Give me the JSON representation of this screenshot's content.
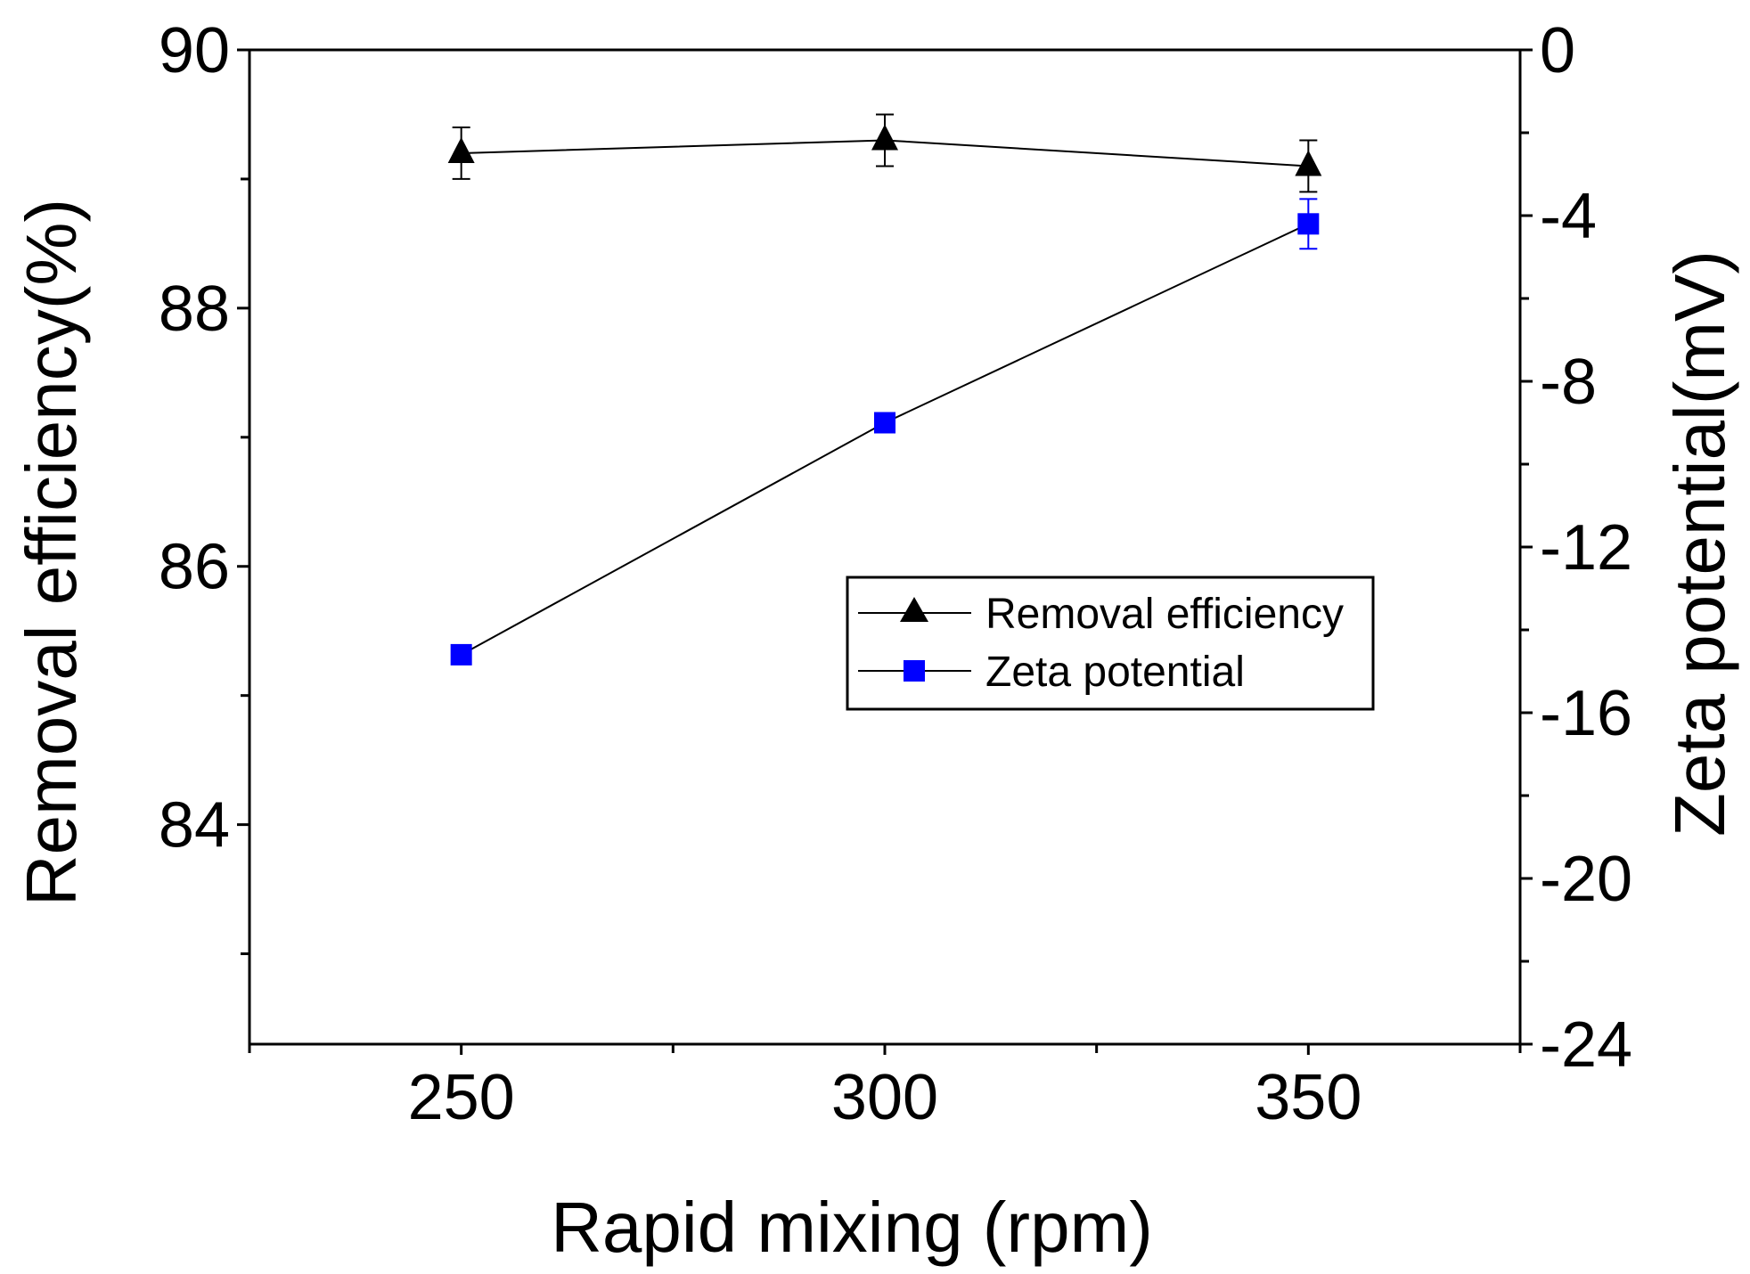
{
  "chart_data": {
    "type": "line",
    "title": "",
    "xlabel": "Rapid mixing (rpm)",
    "ylabel": "Removal efficiency(%)",
    "ylabel_right": "Zeta potential(mV)",
    "x": [
      250,
      300,
      350
    ],
    "xlim": [
      225,
      375
    ],
    "x_ticks": [
      "250",
      "300",
      "350"
    ],
    "ylim": [
      82.3,
      90
    ],
    "y_ticks": [
      "84",
      "86",
      "88",
      "90"
    ],
    "ylim_right": [
      -24,
      0
    ],
    "y_ticks_right": [
      "-24",
      "-20",
      "-16",
      "-12",
      "-8",
      "-4",
      "0"
    ],
    "legend_position": "center-right",
    "series": [
      {
        "name": "Removal efficiency",
        "axis": "left",
        "marker": "triangle",
        "color": "#000000",
        "values": [
          89.2,
          89.3,
          89.1
        ],
        "errors": [
          0.2,
          0.2,
          0.2
        ]
      },
      {
        "name": "Zeta potential",
        "axis": "right",
        "marker": "square",
        "color": "#0000ff",
        "values": [
          -14.6,
          -9.0,
          -4.2
        ],
        "errors": [
          0,
          0,
          0.6
        ]
      }
    ]
  }
}
